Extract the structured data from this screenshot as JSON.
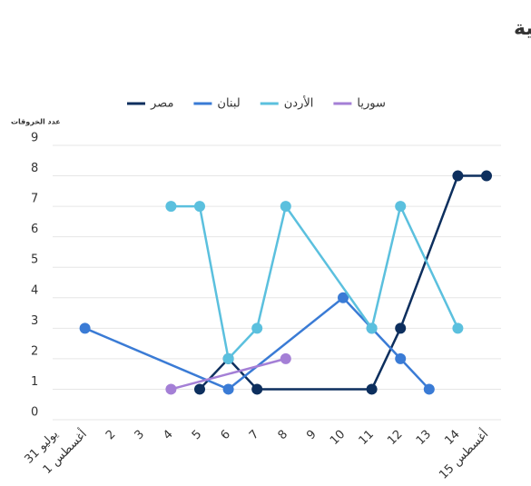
{
  "chart_data": {
    "type": "line",
    "title": "التسلسل الزمني للخروقات الجوية الإسرائيلية",
    "y_label": "عدد الخروقات",
    "categories": [
      "31 يوليو",
      "1 أغسطس",
      "2",
      "3",
      "4",
      "5",
      "6",
      "7",
      "8",
      "9",
      "10",
      "11",
      "12",
      "13",
      "14",
      "15 أغسطس"
    ],
    "series": [
      {
        "name": "مصر",
        "color": "#0d2f5e",
        "values": [
          null,
          null,
          null,
          null,
          null,
          1,
          2,
          1,
          null,
          null,
          null,
          1,
          3,
          null,
          8,
          8
        ]
      },
      {
        "name": "لبنان",
        "color": "#3a7bd5",
        "values": [
          null,
          3,
          null,
          null,
          null,
          null,
          1,
          null,
          null,
          null,
          4,
          3,
          2,
          1,
          null,
          null
        ]
      },
      {
        "name": "الأردن",
        "color": "#5bc0de",
        "values": [
          null,
          null,
          null,
          null,
          7,
          7,
          2,
          3,
          7,
          null,
          null,
          3,
          7,
          null,
          3,
          null
        ]
      },
      {
        "name": "سوريا",
        "color": "#a47fd6",
        "values": [
          null,
          null,
          null,
          null,
          1,
          null,
          null,
          null,
          2,
          null,
          null,
          null,
          null,
          null,
          null,
          null
        ]
      }
    ],
    "connect_nulls": true,
    "ylim": [
      0,
      9
    ],
    "yticks": [
      0,
      1,
      2,
      3,
      4,
      5,
      6,
      7,
      8,
      9
    ],
    "grid": true
  }
}
